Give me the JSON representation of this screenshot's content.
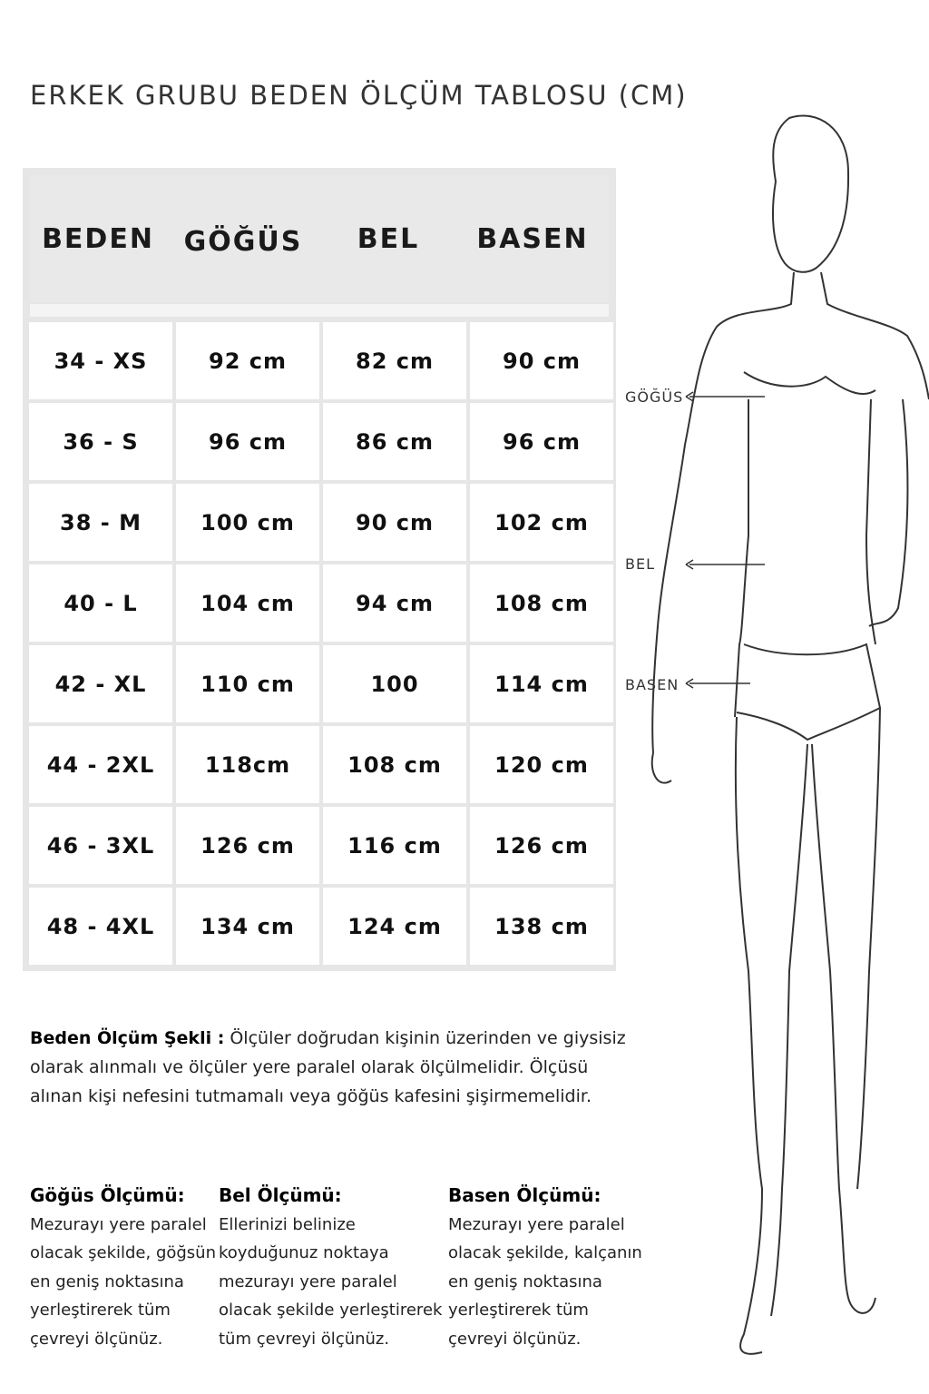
{
  "title": "ERKEK GRUBU BEDEN ÖLÇÜM TABLOSU (CM)",
  "table": {
    "headers": [
      "BEDEN",
      "GÖĞÜS",
      "BEL",
      "BASEN"
    ],
    "rows": [
      [
        "34 - XS",
        "92 cm",
        "82 cm",
        "90 cm"
      ],
      [
        "36 - S",
        "96 cm",
        "86 cm",
        "96 cm"
      ],
      [
        "38 - M",
        "100 cm",
        "90 cm",
        "102 cm"
      ],
      [
        "40 - L",
        "104 cm",
        "94 cm",
        "108 cm"
      ],
      [
        "42 - XL",
        "110 cm",
        "100",
        "114 cm"
      ],
      [
        "44 - 2XL",
        "118cm",
        "108 cm",
        "120 cm"
      ],
      [
        "46 - 3XL",
        "126 cm",
        "116 cm",
        "126 cm"
      ],
      [
        "48 - 4XL",
        "134 cm",
        "124 cm",
        "138 cm"
      ]
    ]
  },
  "description": {
    "label": "Beden Ölçüm Şekli :",
    "text": " Ölçüler doğrudan kişinin üzerinden ve giysisiz olarak alınmalı ve ölçüler yere paralel olarak ölçülmelidir. Ölçüsü alınan kişi nefesini tutmamalı veya göğüs kafesini şişirmemelidir."
  },
  "measurements": [
    {
      "title": "Göğüs Ölçümü:",
      "text": "Mezurayı yere paralel\nolacak şekilde, göğsün\nen geniş noktasına\nyerleştirerek tüm\nçevreyi ölçünüz."
    },
    {
      "title": "Bel Ölçümü:",
      "text": "Ellerinizi belinize\nkoyduğunuz noktaya\nmezurayı yere paralel\nolacak şekilde  yerleştirerek\ntüm çevreyi ölçünüz."
    },
    {
      "title": "Basen Ölçümü:",
      "text": "Mezurayı yere paralel\nolacak şekilde, kalçanın\nen geniş noktasına\nyerleştirerek tüm\nçevreyi ölçünüz."
    }
  ],
  "figure_labels": {
    "chest": "GÖĞÜS",
    "waist": "BEL",
    "hip": "BASEN"
  }
}
